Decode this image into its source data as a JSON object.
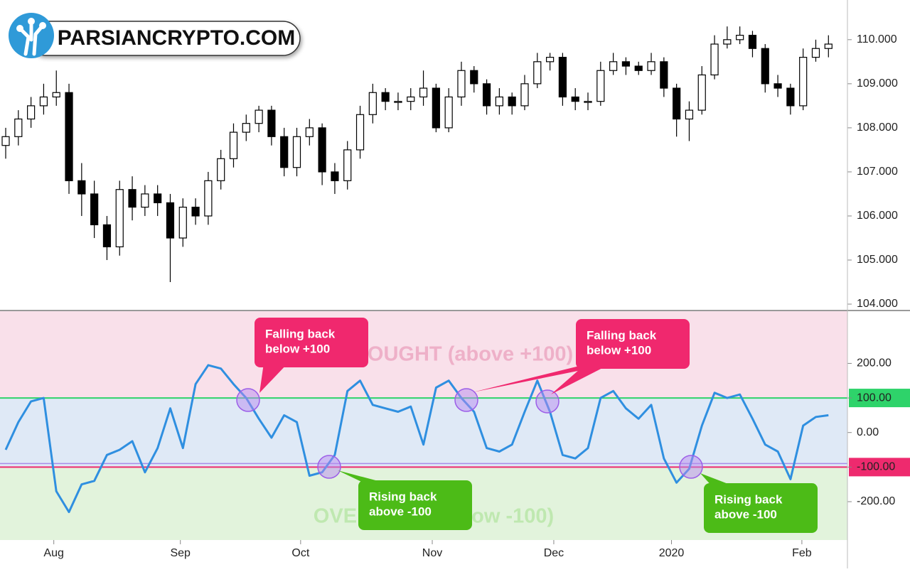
{
  "logo": "PARSIANCRYPTO.COM",
  "chart_data": [
    {
      "type": "candlestick",
      "xlim": [
        -0.45,
        66.5
      ],
      "ylim": [
        103.855,
        110.9
      ],
      "yticks": [
        {
          "value": 104,
          "label": "104.000"
        },
        {
          "value": 105,
          "label": "105.000"
        },
        {
          "value": 106,
          "label": "106.000"
        },
        {
          "value": 107,
          "label": "107.000"
        },
        {
          "value": 108,
          "label": "108.000"
        },
        {
          "value": 109,
          "label": "109.000"
        },
        {
          "value": 110,
          "label": "110.000"
        }
      ],
      "up_color": "#ffffff",
      "down_color": "#000000",
      "open": [
        107.6,
        107.8,
        108.2,
        108.5,
        108.7,
        108.8,
        106.8,
        106.5,
        105.8,
        105.3,
        106.6,
        106.2,
        106.5,
        106.3,
        105.5,
        106.2,
        106.0,
        106.8,
        107.3,
        107.9,
        108.1,
        108.4,
        107.8,
        107.1,
        107.8,
        108.0,
        107.0,
        106.8,
        107.5,
        108.3,
        108.8,
        108.6,
        108.6,
        108.7,
        108.9,
        108.0,
        108.7,
        109.3,
        109.0,
        108.5,
        108.7,
        108.5,
        109.0,
        109.5,
        109.6,
        108.7,
        108.6,
        108.6,
        109.3,
        109.5,
        109.4,
        109.3,
        109.5,
        108.9,
        108.2,
        108.4,
        109.2,
        109.9,
        110.0,
        110.1,
        109.8,
        109.0,
        108.9,
        108.5,
        109.6,
        109.8
      ],
      "high": [
        108.0,
        108.4,
        108.7,
        109.0,
        109.3,
        109.0,
        107.2,
        106.8,
        106.0,
        106.8,
        106.9,
        106.7,
        106.7,
        106.5,
        106.4,
        106.4,
        107.0,
        107.5,
        108.1,
        108.3,
        108.5,
        108.5,
        108.0,
        108.0,
        108.2,
        108.1,
        107.2,
        107.7,
        108.5,
        109.0,
        108.9,
        108.8,
        108.9,
        109.3,
        109.0,
        108.9,
        109.5,
        109.4,
        109.1,
        108.9,
        108.8,
        109.2,
        109.7,
        109.7,
        109.7,
        108.9,
        108.8,
        109.5,
        109.7,
        109.6,
        109.5,
        109.7,
        109.6,
        109.0,
        108.6,
        109.4,
        110.1,
        110.3,
        110.3,
        110.2,
        109.9,
        109.2,
        109.0,
        109.8,
        110.0,
        110.1
      ],
      "low": [
        107.3,
        107.6,
        108.0,
        108.3,
        108.5,
        106.5,
        106.0,
        105.5,
        105.0,
        105.1,
        105.9,
        106.0,
        106.0,
        104.5,
        105.3,
        105.8,
        105.8,
        106.6,
        107.1,
        107.7,
        107.9,
        107.6,
        106.9,
        106.9,
        107.6,
        106.7,
        106.5,
        106.6,
        107.3,
        108.1,
        108.4,
        108.4,
        108.4,
        108.5,
        107.9,
        107.9,
        108.5,
        108.8,
        108.3,
        108.3,
        108.3,
        108.4,
        108.9,
        109.3,
        108.5,
        108.4,
        108.4,
        108.5,
        109.2,
        109.2,
        109.2,
        109.2,
        108.7,
        107.8,
        107.7,
        108.3,
        109.1,
        109.8,
        109.9,
        109.6,
        108.8,
        108.7,
        108.3,
        108.4,
        109.5,
        109.6
      ],
      "close": [
        107.8,
        108.2,
        108.5,
        108.7,
        108.8,
        106.8,
        106.5,
        105.8,
        105.3,
        106.6,
        106.2,
        106.5,
        106.3,
        105.5,
        106.2,
        106.0,
        106.8,
        107.3,
        107.9,
        108.1,
        108.4,
        107.8,
        107.1,
        107.8,
        108.0,
        107.0,
        106.8,
        107.5,
        108.3,
        108.8,
        108.6,
        108.6,
        108.7,
        108.9,
        108.0,
        108.7,
        109.3,
        109.0,
        108.5,
        108.7,
        108.5,
        109.0,
        109.5,
        109.6,
        108.7,
        108.6,
        108.6,
        109.3,
        109.5,
        109.4,
        109.3,
        109.5,
        108.9,
        108.2,
        108.4,
        109.2,
        109.9,
        110.0,
        110.1,
        109.8,
        109.0,
        108.9,
        108.5,
        109.6,
        109.8,
        109.9
      ]
    },
    {
      "type": "line",
      "xlim": [
        -0.45,
        66.5
      ],
      "ylim": [
        -311,
        353
      ],
      "yticks": [
        {
          "value": -200,
          "label": "-200.00"
        },
        {
          "value": -100,
          "label": "-100.00"
        },
        {
          "value": 0,
          "label": "0.00"
        },
        {
          "value": 100,
          "label": "100.00"
        },
        {
          "value": 200,
          "label": "200.00"
        }
      ],
      "xticks": [
        {
          "value": 3.8,
          "label": "Aug"
        },
        {
          "value": 13.8,
          "label": "Sep"
        },
        {
          "value": 23.3,
          "label": "Oct"
        },
        {
          "value": 33.7,
          "label": "Nov"
        },
        {
          "value": 43.3,
          "label": "Dec"
        },
        {
          "value": 52.6,
          "label": "2020"
        },
        {
          "value": 62.9,
          "label": "Feb"
        }
      ],
      "color": "#2f8fe0",
      "values": [
        -50,
        30,
        90,
        100,
        -170,
        -230,
        -150,
        -140,
        -65,
        -50,
        -25,
        -115,
        -45,
        70,
        -45,
        140,
        195,
        185,
        140,
        100,
        40,
        -15,
        50,
        30,
        -125,
        -115,
        -65,
        120,
        150,
        80,
        70,
        60,
        75,
        -35,
        130,
        150,
        100,
        60,
        -45,
        -55,
        -35,
        60,
        150,
        60,
        -65,
        -75,
        -45,
        100,
        120,
        70,
        40,
        80,
        -75,
        -145,
        -105,
        20,
        115,
        100,
        110,
        40,
        -35,
        -55,
        -135,
        20,
        45,
        50
      ],
      "zones": [
        {
          "from": 100,
          "to": 353,
          "color": "#f9e0ea",
          "label": "OVERBOUGHT (above +100)",
          "label_color": "#eeb0c8"
        },
        {
          "from": -100,
          "to": 100,
          "color": "#dfe9f6"
        },
        {
          "from": -311,
          "to": -100,
          "color": "#e2f3dc",
          "label": "OVERSOLD (below -100)",
          "label_color": "#bfe8b0"
        }
      ],
      "level_lines": [
        {
          "value": 100,
          "color": "#2ed36a"
        },
        {
          "value": -100,
          "color": "#ee2a6e"
        }
      ],
      "annotations": [
        {
          "lines": [
            "Falling back",
            "below +100"
          ],
          "color": "#f0286e"
        },
        {
          "lines": [
            "Falling back",
            "below +100"
          ],
          "color": "#f0286e"
        },
        {
          "lines": [
            "Rising back",
            "above -100"
          ],
          "color": "#4cbb17"
        },
        {
          "lines": [
            "Rising back",
            "above -100"
          ],
          "color": "#4cbb17"
        }
      ]
    }
  ]
}
